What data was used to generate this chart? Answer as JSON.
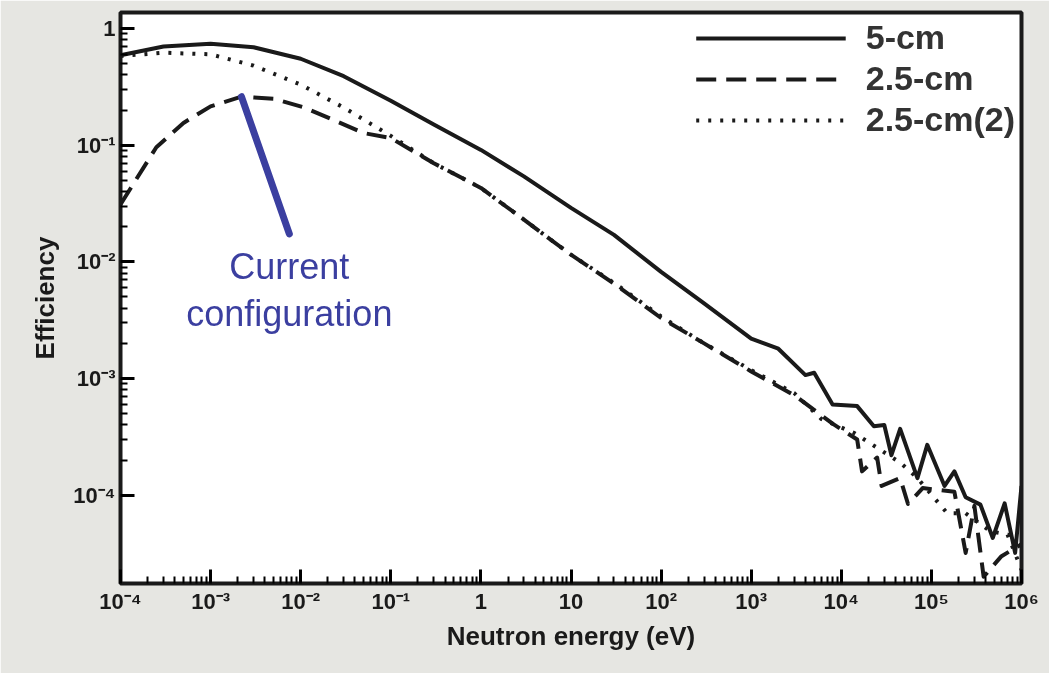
{
  "chart_data": {
    "type": "line",
    "xlabel": "Neutron energy (eV)",
    "ylabel": "Efficiency",
    "log": "xy",
    "grid": false,
    "legend": "top right",
    "marker": "none",
    "xlim": [
      0.0001,
      1000000
    ],
    "ylim": [
      1.75e-05,
      1.37
    ],
    "xticks": [
      {
        "value": 0.0001,
        "label": "10⁻⁴"
      },
      {
        "value": 0.001,
        "label": "10⁻³"
      },
      {
        "value": 0.01,
        "label": "10⁻²"
      },
      {
        "value": 0.1,
        "label": "10⁻¹"
      },
      1,
      10,
      {
        "value": 100,
        "label": "10²"
      },
      {
        "value": 1000,
        "label": "10³"
      },
      {
        "value": 10000,
        "label": "10⁴"
      },
      {
        "value": 100000,
        "label": "10⁵"
      },
      {
        "value": 1000000,
        "label": "10⁶"
      }
    ],
    "yticks": [
      {
        "value": 0.0001,
        "label": "10⁻⁴"
      },
      {
        "value": 0.001,
        "label": "10⁻³"
      },
      {
        "value": 0.01,
        "label": "10⁻²"
      },
      {
        "value": 0.1,
        "label": "10⁻¹"
      },
      1
    ],
    "annotations": [
      {
        "text": "Current configuration",
        "x": 0.0022,
        "y": 0.26
      }
    ],
    "series": [
      {
        "name": "5-cm",
        "color": "#1a1a1a",
        "line_style": "solid",
        "x": [
          0.0001,
          0.0003,
          0.001,
          0.003,
          0.01,
          0.03,
          0.1,
          0.3,
          1,
          3,
          10,
          30,
          100,
          300,
          1000,
          2000,
          4000,
          5000,
          8000,
          15000,
          23000,
          30000,
          36000,
          45000,
          70000,
          90000,
          140000,
          180000,
          240000,
          350000,
          480000,
          650000,
          850000,
          1000000
        ],
        "values": [
          0.59,
          0.7,
          0.74,
          0.69,
          0.55,
          0.39,
          0.24,
          0.15,
          0.091,
          0.054,
          0.029,
          0.017,
          0.0082,
          0.0044,
          0.0022,
          0.0018,
          0.00107,
          0.00112,
          0.0006,
          0.00058,
          0.00039,
          0.0004,
          0.00022,
          0.00037,
          0.00014,
          0.00027,
          0.00012,
          0.00016,
          9.6e-05,
          8.3e-05,
          4.3e-05,
          8.5e-05,
          3.2e-05,
          0.00012
        ]
      },
      {
        "name": "2.5-cm",
        "color": "#1a1a1a",
        "line_style": "dashed",
        "x": [
          0.0001,
          0.00025,
          0.0005,
          0.001,
          0.0022,
          0.005,
          0.011,
          0.025,
          0.05,
          0.1,
          0.3,
          1,
          3,
          10,
          30,
          100,
          300,
          1000,
          3000,
          8000,
          15000,
          17000,
          25000,
          28000,
          45000,
          55000,
          80000,
          180000,
          240000,
          300000,
          380000,
          600000,
          1000000
        ],
        "values": [
          0.031,
          0.096,
          0.155,
          0.215,
          0.26,
          0.25,
          0.21,
          0.16,
          0.127,
          0.115,
          0.07,
          0.043,
          0.023,
          0.0115,
          0.0065,
          0.0033,
          0.002,
          0.00115,
          0.00072,
          0.00041,
          0.0003,
          0.00016,
          0.00021,
          0.00012,
          0.00014,
          8.4e-05,
          0.000115,
          0.000107,
          3.2e-05,
          8.1e-05,
          2e-05,
          3e-05,
          3.8e-05
        ]
      },
      {
        "name": "2.5-cm(2)",
        "color": "#1a1a1a",
        "line_style": "dotted",
        "x": [
          0.0001,
          0.0003,
          0.001,
          0.003,
          0.01,
          0.03,
          0.1,
          0.3,
          1,
          3,
          10,
          30,
          100,
          300,
          1000,
          3000,
          6000,
          14000,
          45000,
          70000,
          150000,
          240000,
          450000,
          700000,
          1000000
        ],
        "values": [
          0.58,
          0.62,
          0.6,
          0.48,
          0.33,
          0.21,
          0.12,
          0.07,
          0.043,
          0.023,
          0.0115,
          0.0066,
          0.0034,
          0.002,
          0.00118,
          0.00075,
          0.00045,
          0.00034,
          0.00019,
          0.00014,
          7e-05,
          7e-05,
          4.9e-05,
          4.6e-05,
          2.3e-05
        ]
      }
    ]
  }
}
